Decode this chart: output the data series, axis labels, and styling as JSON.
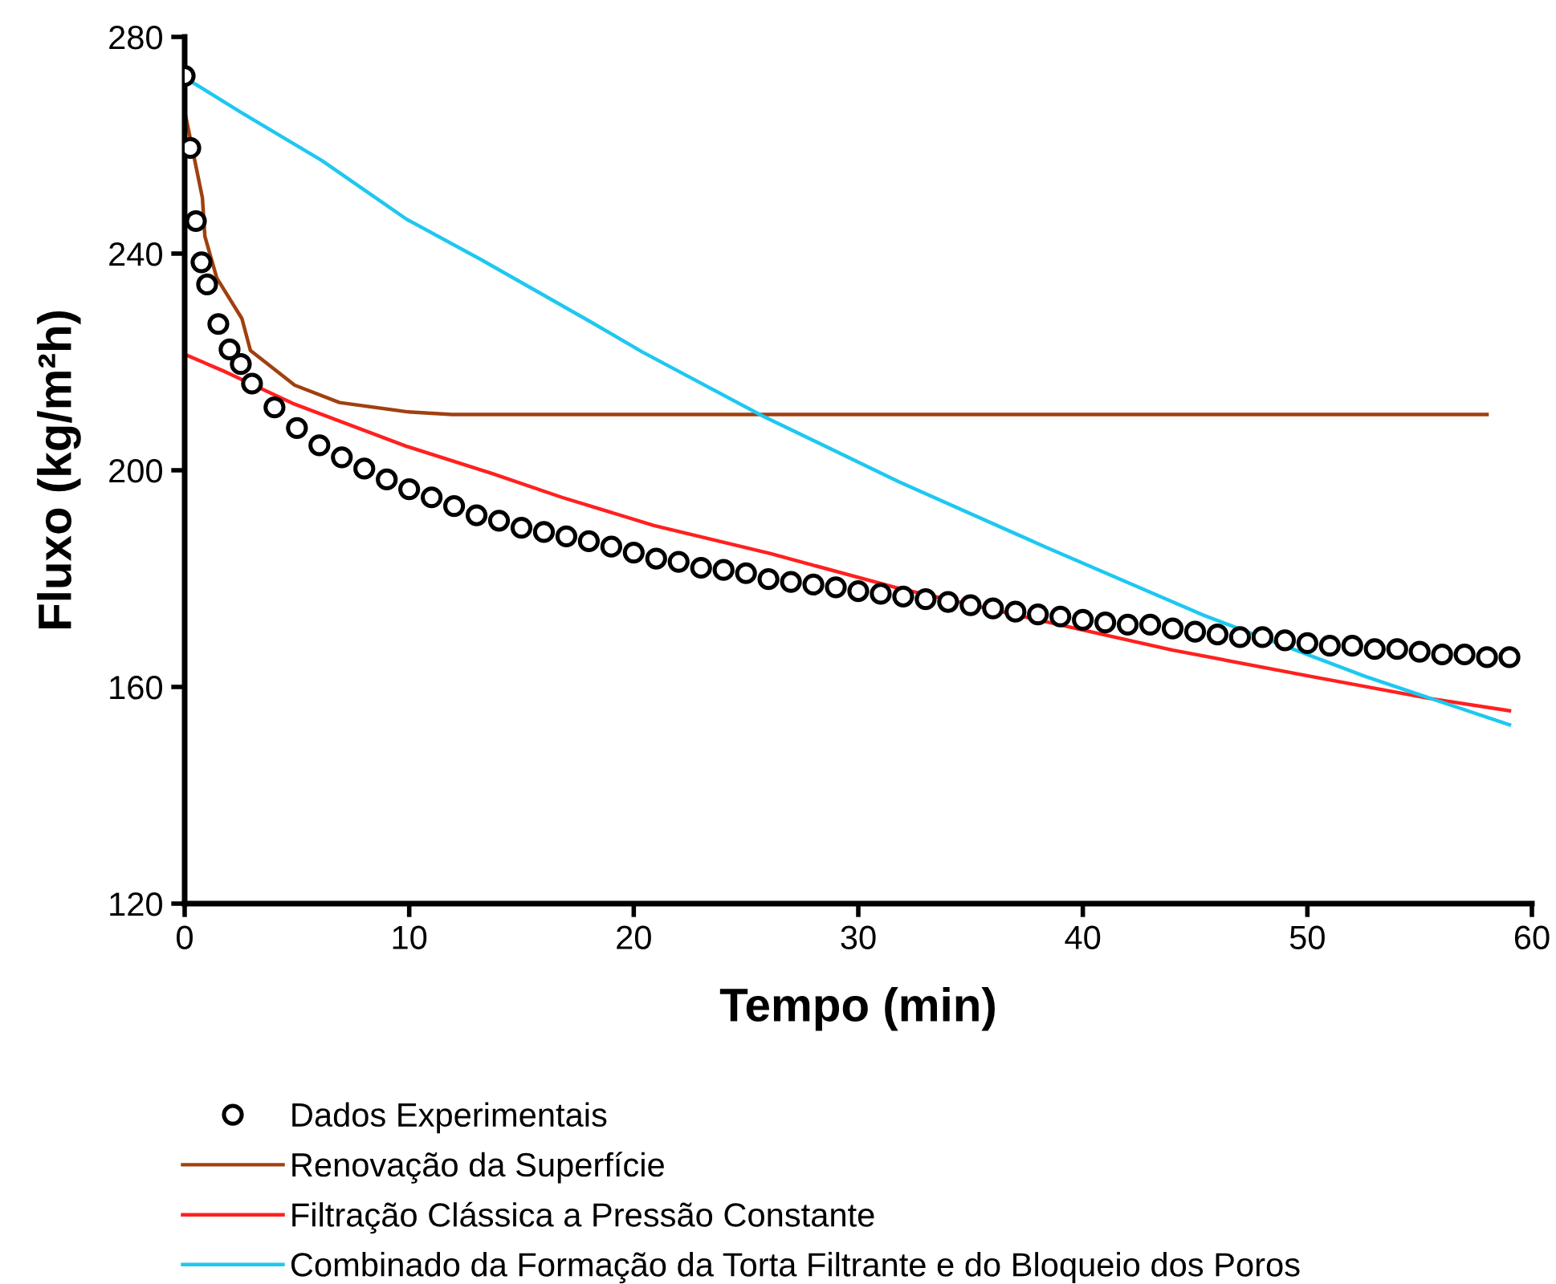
{
  "chart_data": {
    "type": "line",
    "xlabel": "Tempo (min)",
    "ylabel": "Fluxo (kg/m²h)",
    "xlim": [
      0,
      60
    ],
    "ylim": [
      120,
      280
    ],
    "xticks": [
      0,
      10,
      20,
      30,
      40,
      50,
      60
    ],
    "yticks": [
      120,
      160,
      200,
      240,
      280
    ],
    "grid": false,
    "legend": "bottom",
    "series": [
      {
        "name": "Dados Experimentais",
        "type": "scatter",
        "marker": "circle",
        "color": "#000000",
        "x": [
          0,
          0.25,
          0.5,
          0.75,
          1,
          1.5,
          2,
          2.5,
          3,
          4,
          5,
          6,
          7,
          8,
          9,
          10,
          11,
          12,
          13,
          14,
          15,
          16,
          17,
          18,
          19,
          20,
          21,
          22,
          23,
          24,
          25,
          26,
          27,
          28,
          29,
          30,
          31,
          32,
          33,
          34,
          35,
          36,
          37,
          38,
          39,
          40,
          41,
          42,
          43,
          44,
          45,
          46,
          47,
          48,
          49,
          50,
          51,
          52,
          53,
          54,
          55,
          56,
          57,
          58,
          59
        ],
        "values": [
          272.8,
          259.5,
          246,
          238.4,
          234.3,
          227,
          222.3,
          219.6,
          216,
          211.6,
          207.8,
          204.6,
          202.4,
          200.3,
          198.3,
          196.5,
          195,
          193.4,
          191.7,
          190.7,
          189.4,
          188.6,
          187.8,
          186.9,
          185.9,
          184.8,
          183.7,
          183.1,
          182,
          181.6,
          181,
          179.9,
          179.4,
          178.9,
          178.4,
          177.7,
          177.2,
          176.7,
          176.2,
          175.7,
          175.1,
          174.5,
          173.9,
          173.4,
          173,
          172.4,
          171.9,
          171.5,
          171.5,
          170.8,
          170.2,
          169.7,
          169.2,
          169.2,
          168.6,
          168.1,
          167.6,
          167.6,
          167,
          167,
          166.5,
          166,
          166,
          165.5,
          165.5
        ]
      },
      {
        "name": "Renovação da Superfície",
        "color": "#a04010",
        "x": [
          0,
          0.79,
          0.9,
          1.43,
          2.55,
          2.93,
          4.9,
          6.9,
          9.9,
          11.9,
          58
        ],
        "values": [
          266.3,
          250.3,
          243.2,
          235.5,
          228,
          222.1,
          215.7,
          212.5,
          210.8,
          210.3,
          210.3
        ]
      },
      {
        "name": "Filtração Clássica a Pressão Constante",
        "color": "#ff2020",
        "x": [
          0,
          1.8,
          4.9,
          9.9,
          13.7,
          16.8,
          20.9,
          26.1,
          31.8,
          38.3,
          44,
          50.2,
          55.4,
          59
        ],
        "values": [
          221.4,
          218.2,
          212.2,
          204.4,
          199.4,
          195,
          189.8,
          184.6,
          178.2,
          172.1,
          166.8,
          161.9,
          157.9,
          155.6
        ]
      },
      {
        "name": "Combinado da Formação da Torta Filtrante e do Bloqueio dos Poros",
        "color": "#1ec8f0",
        "x": [
          0,
          2.5,
          6.1,
          9.9,
          13.2,
          18,
          20.4,
          25.75,
          31.8,
          38.3,
          45.4,
          52.6,
          59
        ],
        "values": [
          272.5,
          266.1,
          257.2,
          246.3,
          238.9,
          227.6,
          221.8,
          210,
          197.9,
          185.9,
          173.2,
          161.9,
          153
        ]
      }
    ]
  }
}
